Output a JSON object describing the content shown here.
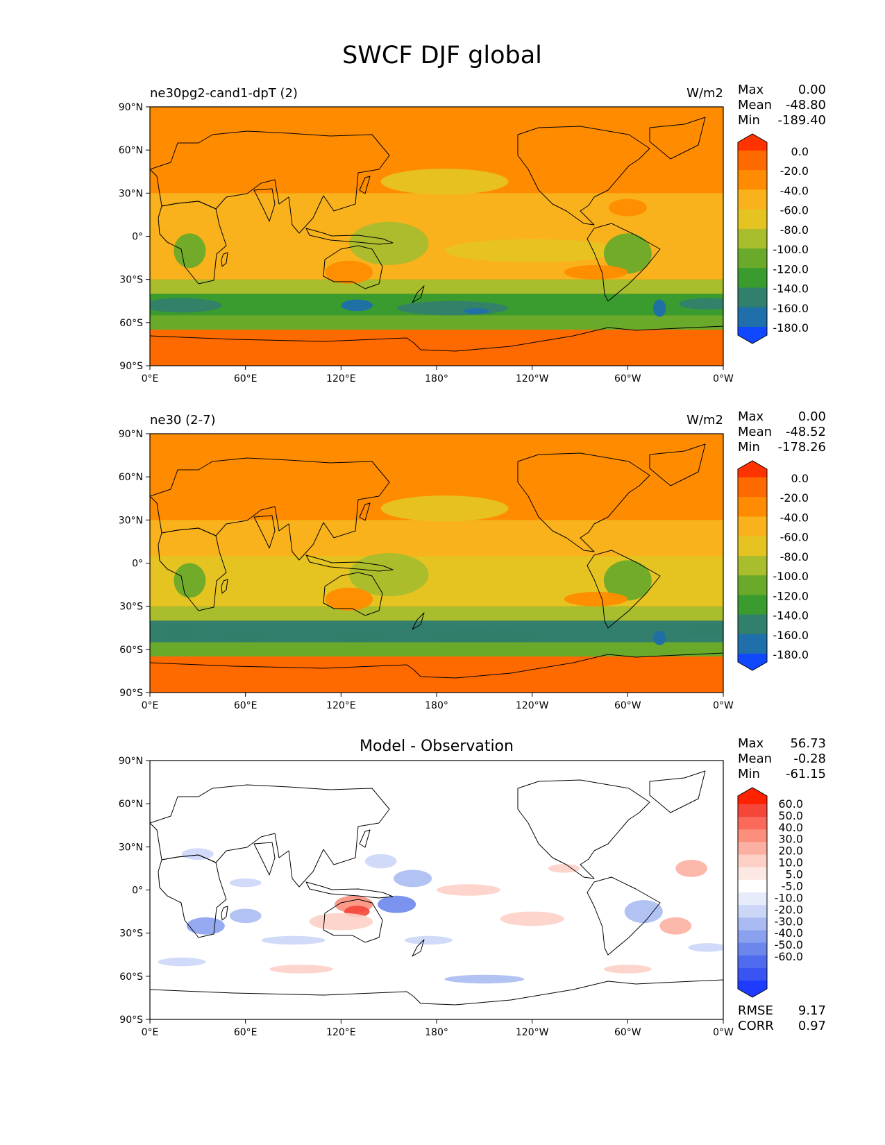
{
  "figure": {
    "title": "SWCF DJF global"
  },
  "colors": {
    "ocean_base": "#ff6a00",
    "levels_abs": [
      "#ff3300",
      "#ff6a00",
      "#ff8c00",
      "#f9b21c",
      "#e5c422",
      "#a9bd2d",
      "#6aaa2a",
      "#3a9c2f",
      "#317f6c",
      "#1f6faa",
      "#1048ff"
    ],
    "levels_diff": [
      "#ff2200",
      "#f4473a",
      "#f96a5a",
      "#fb8f7c",
      "#fcb0a2",
      "#fdd0c6",
      "#fde9e4",
      "#ffffff",
      "#e6ecfb",
      "#ccd7f8",
      "#a9bbf2",
      "#8aa1ef",
      "#6c87ec",
      "#4f6cee",
      "#3a54f4",
      "#1d3cff"
    ]
  },
  "axes": {
    "y_ticks": [
      "90°N",
      "60°N",
      "30°N",
      "0°",
      "30°S",
      "60°S",
      "90°S"
    ],
    "x_ticks": [
      "0°E",
      "60°E",
      "120°E",
      "180°",
      "120°W",
      "60°W",
      "0°W"
    ]
  },
  "panels": [
    {
      "title_left": "ne30pg2-cand1-dpT (2)",
      "title_right": "W/m2",
      "stats": [
        {
          "label": "Max",
          "value": "0.00"
        },
        {
          "label": "Mean",
          "value": "-48.80"
        },
        {
          "label": "Min",
          "value": "-189.40"
        }
      ],
      "colorbar": {
        "labels": [
          "0.0",
          "-20.0",
          "-40.0",
          "-60.0",
          "-80.0",
          "-100.0",
          "-120.0",
          "-140.0",
          "-160.0",
          "-180.0"
        ]
      }
    },
    {
      "title_left": "ne30 (2-7)",
      "title_right": "W/m2",
      "stats": [
        {
          "label": "Max",
          "value": "0.00"
        },
        {
          "label": "Mean",
          "value": "-48.52"
        },
        {
          "label": "Min",
          "value": "-178.26"
        }
      ],
      "colorbar": {
        "labels": [
          "0.0",
          "-20.0",
          "-40.0",
          "-60.0",
          "-80.0",
          "-100.0",
          "-120.0",
          "-140.0",
          "-160.0",
          "-180.0"
        ]
      }
    },
    {
      "title_center": "Model - Observation",
      "stats": [
        {
          "label": "Max",
          "value": "56.73"
        },
        {
          "label": "Mean",
          "value": "-0.28"
        },
        {
          "label": "Min",
          "value": "-61.15"
        }
      ],
      "colorbar": {
        "labels": [
          "60.0",
          "50.0",
          "40.0",
          "30.0",
          "20.0",
          "10.0",
          "5.0",
          "-5.0",
          "-10.0",
          "-20.0",
          "-30.0",
          "-40.0",
          "-50.0",
          "-60.0"
        ]
      },
      "metrics": [
        {
          "label": "RMSE",
          "value": "9.17"
        },
        {
          "label": "CORR",
          "value": "0.97"
        }
      ]
    }
  ],
  "chart_data": [
    {
      "type": "heatmap",
      "title": "ne30pg2-cand1-dpT (2)",
      "units": "W/m2",
      "xlim": [
        0,
        360
      ],
      "ylim": [
        -90,
        90
      ],
      "levels": [
        0,
        -20,
        -40,
        -60,
        -80,
        -100,
        -120,
        -140,
        -160,
        -180
      ],
      "max": 0.0,
      "mean": -48.8,
      "min": -189.4,
      "bands": [
        {
          "lat_range": [
            60,
            90
          ],
          "value": -20
        },
        {
          "lat_range": [
            30,
            60
          ],
          "value": -30
        },
        {
          "lat_range": [
            5,
            30
          ],
          "value": -45
        },
        {
          "lat_range": [
            -30,
            5
          ],
          "value": -55
        },
        {
          "lat_range": [
            -40,
            -30
          ],
          "value": -85
        },
        {
          "lat_range": [
            -55,
            -40
          ],
          "value": -130
        },
        {
          "lat_range": [
            -65,
            -55
          ],
          "value": -110
        },
        {
          "lat_range": [
            -90,
            -65
          ],
          "value": -15
        }
      ]
    },
    {
      "type": "heatmap",
      "title": "ne30 (2-7)",
      "units": "W/m2",
      "xlim": [
        0,
        360
      ],
      "ylim": [
        -90,
        90
      ],
      "levels": [
        0,
        -20,
        -40,
        -60,
        -80,
        -100,
        -120,
        -140,
        -160,
        -180
      ],
      "max": 0.0,
      "mean": -48.52,
      "min": -178.26,
      "bands": [
        {
          "lat_range": [
            60,
            90
          ],
          "value": -20
        },
        {
          "lat_range": [
            30,
            60
          ],
          "value": -30
        },
        {
          "lat_range": [
            5,
            30
          ],
          "value": -45
        },
        {
          "lat_range": [
            -30,
            5
          ],
          "value": -60
        },
        {
          "lat_range": [
            -40,
            -30
          ],
          "value": -90
        },
        {
          "lat_range": [
            -55,
            -40
          ],
          "value": -140
        },
        {
          "lat_range": [
            -65,
            -55
          ],
          "value": -115
        },
        {
          "lat_range": [
            -90,
            -65
          ],
          "value": -15
        }
      ]
    },
    {
      "type": "heatmap",
      "title": "Model - Observation",
      "xlim": [
        0,
        360
      ],
      "ylim": [
        -90,
        90
      ],
      "levels": [
        60,
        50,
        40,
        30,
        20,
        10,
        5,
        -5,
        -10,
        -20,
        -30,
        -40,
        -50,
        -60
      ],
      "max": 56.73,
      "mean": -0.28,
      "min": -61.15,
      "rmse": 9.17,
      "corr": 0.97
    }
  ]
}
